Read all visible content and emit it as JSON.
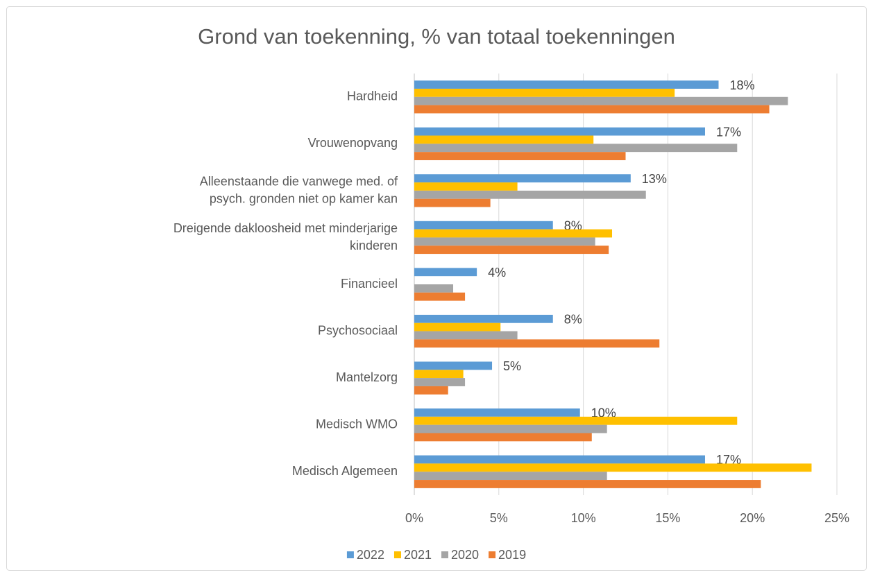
{
  "chart_data": {
    "type": "bar",
    "orientation": "horizontal",
    "title": "Grond van toekenning, % van totaal toekenningen",
    "categories": [
      "Hardheid",
      "Vrouwenopvang",
      "Alleenstaande die vanwege med. of psych. gronden niet op kamer kan",
      "Dreigende dakloosheid met minderjarige kinderen",
      "Financieel",
      "Psychosociaal",
      "Mantelzorg",
      "Medisch WMO",
      "Medisch Algemeen"
    ],
    "series": [
      {
        "name": "2022",
        "color": "#5b9bd5",
        "values": [
          18.0,
          17.2,
          12.8,
          8.2,
          3.7,
          8.2,
          4.6,
          9.8,
          17.2
        ],
        "value_labels": [
          "18%",
          "17%",
          "13%",
          "8%",
          "4%",
          "8%",
          "5%",
          "10%",
          "17%"
        ]
      },
      {
        "name": "2021",
        "color": "#ffc000",
        "values": [
          15.4,
          10.6,
          6.1,
          11.7,
          0,
          5.1,
          2.9,
          19.1,
          23.5
        ]
      },
      {
        "name": "2020",
        "color": "#a5a5a5",
        "values": [
          22.1,
          19.1,
          13.7,
          10.7,
          2.3,
          6.1,
          3.0,
          11.4,
          11.4
        ]
      },
      {
        "name": "2019",
        "color": "#ed7d31",
        "values": [
          21.0,
          12.5,
          4.5,
          11.5,
          3.0,
          14.5,
          2.0,
          10.5,
          20.5
        ]
      }
    ],
    "xlim": [
      0,
      25
    ],
    "xticks": [
      {
        "value": 0,
        "label": "0%"
      },
      {
        "value": 5,
        "label": "5%"
      },
      {
        "value": 10,
        "label": "10%"
      },
      {
        "value": 15,
        "label": "15%"
      },
      {
        "value": 20,
        "label": "20%"
      },
      {
        "value": 25,
        "label": "25%"
      }
    ],
    "grid": true,
    "legend": "bottom"
  }
}
